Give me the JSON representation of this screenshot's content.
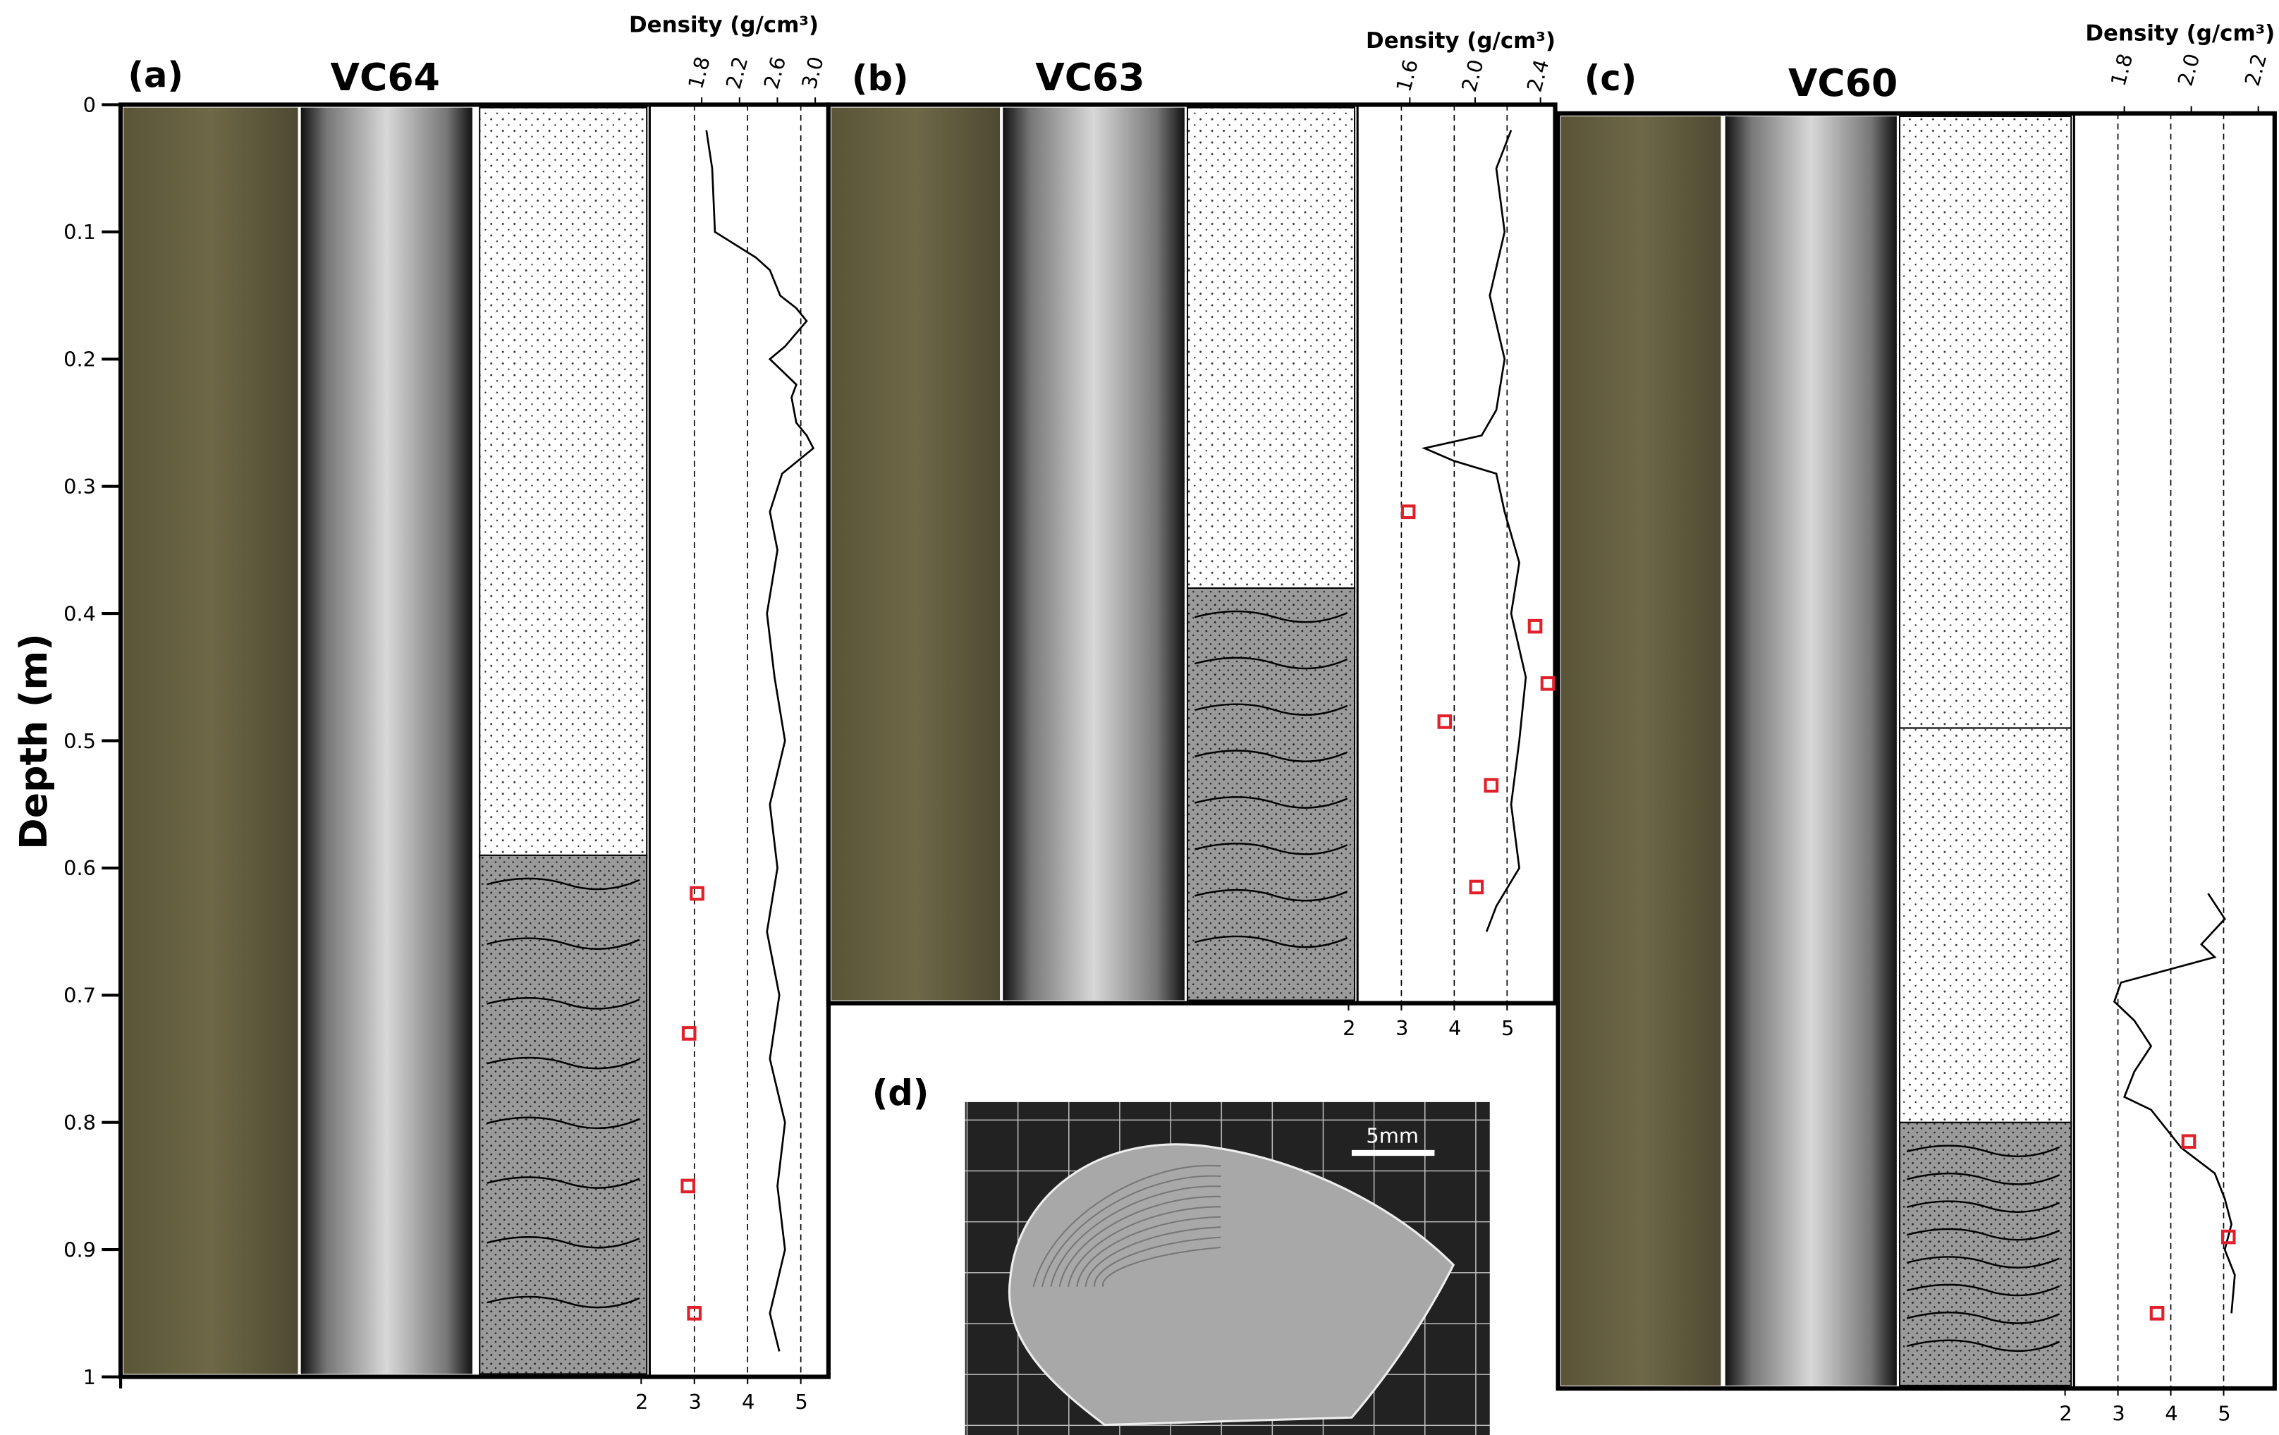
{
  "depth_axis": {
    "title": "Depth (m)",
    "lim": [
      0,
      1
    ],
    "ticks": [
      0,
      0.1,
      0.2,
      0.3,
      0.4,
      0.5,
      0.6,
      0.7,
      0.8,
      0.9,
      1
    ]
  },
  "panels": [
    {
      "label": "(a)",
      "core": "VC64",
      "density_title": "Density (g/cm³)",
      "density_lim": [
        1.25,
        3.14
      ],
      "density_ticks": [
        1.8,
        2.2,
        2.6,
        {
          "value": 3,
          "label": "3.0"
        }
      ],
      "bottom_lim": [
        2.16,
        5.52
      ],
      "bottom_ticks": [
        2,
        3,
        4,
        5
      ],
      "depth": [
        0.02,
        0.05,
        0.1,
        0.12,
        0.13,
        0.15,
        0.16,
        0.17,
        0.19,
        0.2,
        0.22,
        0.23,
        0.25,
        0.26,
        0.27,
        0.29,
        0.32,
        0.35,
        0.4,
        0.45,
        0.5,
        0.55,
        0.6,
        0.65,
        0.7,
        0.75,
        0.8,
        0.85,
        0.9,
        0.95,
        0.98
      ],
      "density": [
        1.85,
        1.91,
        1.94,
        2.37,
        2.52,
        2.63,
        2.8,
        2.91,
        2.68,
        2.52,
        2.8,
        2.75,
        2.8,
        2.91,
        2.98,
        2.65,
        2.52,
        2.6,
        2.49,
        2.57,
        2.68,
        2.52,
        2.6,
        2.49,
        2.62,
        2.52,
        2.68,
        2.6,
        2.68,
        2.52,
        2.62
      ],
      "points": {
        "depth": [
          0.62,
          0.73,
          0.85,
          0.95
        ],
        "values": [
          3.05,
          2.9,
          2.88,
          3.0
        ]
      }
    },
    {
      "label": "(b)",
      "core": "VC63",
      "density_title": "Density (g/cm³)",
      "density_lim": [
        1.28,
        2.49
      ],
      "density_ticks": [
        1.6,
        {
          "value": 2,
          "label": "2.0"
        },
        2.4
      ],
      "bottom_lim": [
        2.17,
        5.91
      ],
      "bottom_ticks": [
        2,
        3,
        4,
        5
      ],
      "depth": [
        0.02,
        0.05,
        0.1,
        0.15,
        0.2,
        0.24,
        0.26,
        0.27,
        0.28,
        0.29,
        0.32,
        0.36,
        0.4,
        0.45,
        0.5,
        0.55,
        0.6,
        0.63,
        0.65
      ],
      "density": [
        2.22,
        2.13,
        2.18,
        2.09,
        2.18,
        2.13,
        2.04,
        1.69,
        1.87,
        2.13,
        2.18,
        2.27,
        2.22,
        2.31,
        2.27,
        2.22,
        2.27,
        2.13,
        2.07
      ],
      "points": {
        "depth": [
          0.32,
          0.41,
          0.455,
          0.485,
          0.535,
          0.615
        ],
        "values": [
          3.13,
          5.53,
          5.77,
          3.82,
          4.7,
          4.42
        ]
      }
    },
    {
      "label": "(c)",
      "core": "VC60",
      "density_title": "Density (g/cm³)",
      "density_lim": [
        1.65,
        2.24
      ],
      "density_ticks": [
        1.8,
        {
          "value": 2,
          "label": "2.0"
        },
        2.2
      ],
      "bottom_lim": [
        2.17,
        5.91
      ],
      "bottom_ticks": [
        2,
        3,
        4,
        5
      ],
      "depth": [
        0.62,
        0.64,
        0.66,
        0.67,
        0.69,
        0.705,
        0.72,
        0.74,
        0.76,
        0.78,
        0.79,
        0.82,
        0.84,
        0.86,
        0.88,
        0.9,
        0.92,
        0.95
      ],
      "density": [
        2.05,
        2.1,
        2.03,
        2.07,
        1.79,
        1.77,
        1.83,
        1.88,
        1.83,
        1.8,
        1.88,
        1.97,
        2.07,
        2.1,
        2.12,
        2.1,
        2.13,
        2.12
      ],
      "points": {
        "depth": [
          0.815,
          0.89,
          0.95
        ],
        "values": [
          4.34,
          5.09,
          3.74
        ]
      }
    }
  ],
  "panel_d": {
    "label": "(d)",
    "scale_bar": "5mm"
  }
}
